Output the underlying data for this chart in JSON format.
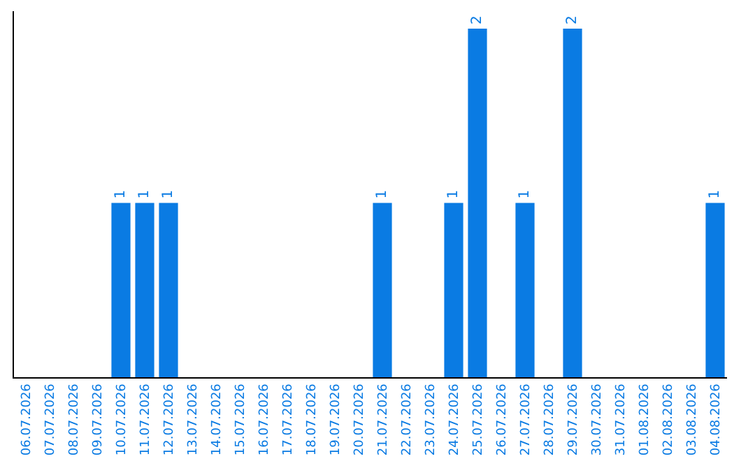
{
  "chart_data": {
    "type": "bar",
    "categories": [
      "06.07.2026",
      "07.07.2026",
      "08.07.2026",
      "09.07.2026",
      "10.07.2026",
      "11.07.2026",
      "12.07.2026",
      "13.07.2026",
      "14.07.2026",
      "15.07.2026",
      "16.07.2026",
      "17.07.2026",
      "18.07.2026",
      "19.07.2026",
      "20.07.2026",
      "21.07.2026",
      "22.07.2026",
      "23.07.2026",
      "24.07.2026",
      "25.07.2026",
      "26.07.2026",
      "27.07.2026",
      "28.07.2026",
      "29.07.2026",
      "30.07.2026",
      "31.07.2026",
      "01.08.2026",
      "02.08.2026",
      "03.08.2026",
      "04.08.2026"
    ],
    "values": [
      0,
      0,
      0,
      0,
      1,
      1,
      1,
      0,
      0,
      0,
      0,
      0,
      0,
      0,
      0,
      1,
      0,
      0,
      1,
      2,
      0,
      1,
      0,
      2,
      0,
      0,
      0,
      0,
      0,
      1
    ],
    "value_labels": [
      null,
      null,
      null,
      null,
      "1",
      "1",
      "1",
      null,
      null,
      null,
      null,
      null,
      null,
      null,
      null,
      "1",
      null,
      null,
      "1",
      "2",
      null,
      "1",
      null,
      "2",
      null,
      null,
      null,
      null,
      null,
      "1"
    ],
    "color": "#0a7be3",
    "ylim": [
      0,
      2.1
    ],
    "tick_labels": "x"
  }
}
